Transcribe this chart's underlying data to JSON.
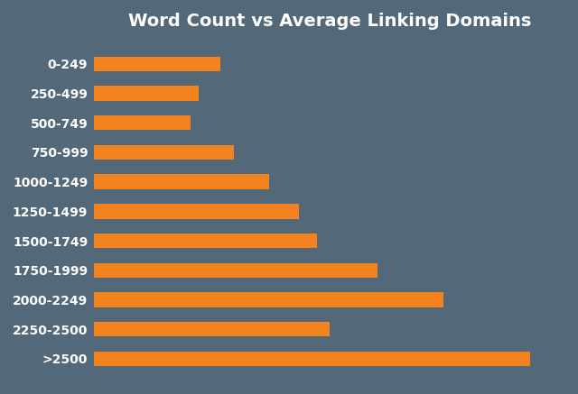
{
  "title": "Word Count vs Average Linking Domains",
  "categories": [
    "0-249",
    "250-499",
    "500-749",
    "750-999",
    "1000-1249",
    "1250-1499",
    "1500-1749",
    "1750-1999",
    "2000-2249",
    "2250-2500",
    ">2500"
  ],
  "values": [
    29,
    24,
    22,
    32,
    40,
    47,
    51,
    65,
    80,
    54,
    100
  ],
  "bar_color": "#F4831F",
  "background_color": "#536878",
  "title_color": "#FFFFFF",
  "label_color": "#FFFFFF",
  "title_fontsize": 14,
  "label_fontsize": 10
}
